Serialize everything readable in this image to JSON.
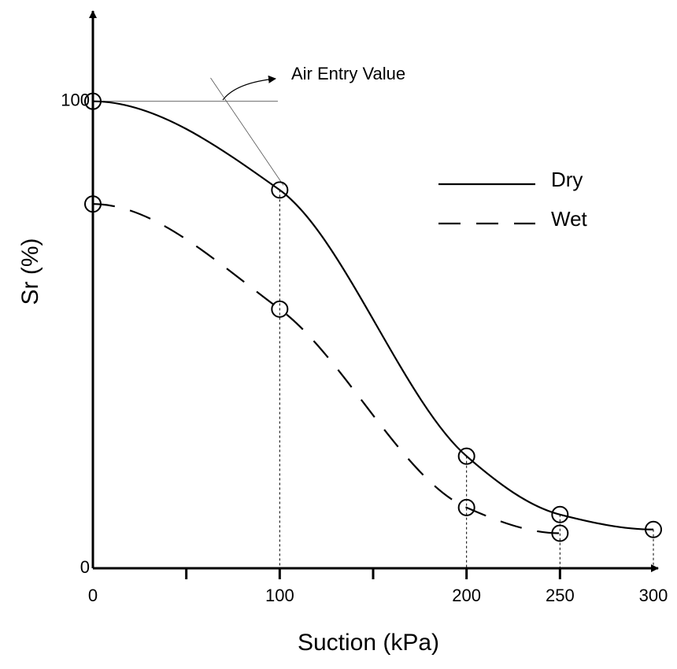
{
  "chart_data": {
    "type": "line",
    "xlabel": "Suction (kPa)",
    "ylabel": "Sr (%)",
    "xlim": [
      0,
      300
    ],
    "ylim": [
      0,
      120
    ],
    "xticks": [
      0,
      100,
      200,
      250,
      300
    ],
    "xtick_marks": [
      50,
      100,
      150,
      200,
      250
    ],
    "yticks": [
      0,
      100
    ],
    "legend": "right",
    "series": [
      {
        "name": "Dry",
        "color": "#000000",
        "dash": false,
        "x": [
          0,
          100,
          200,
          250,
          300
        ],
        "values": [
          100,
          81,
          24,
          11.5,
          8.3
        ]
      },
      {
        "name": "Wet",
        "color": "#000000",
        "dash": true,
        "x": [
          0,
          100,
          200,
          250
        ],
        "values": [
          78,
          55.5,
          13,
          7.5
        ]
      }
    ],
    "annotation": {
      "text": "Air Entry Value",
      "tangent_lines": [
        [
          0,
          100,
          99,
          100
        ],
        [
          63,
          105,
          102,
          82
        ]
      ]
    }
  }
}
